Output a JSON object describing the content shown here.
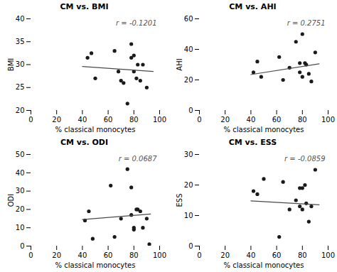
{
  "chart_data": [
    {
      "type": "scatter",
      "title": "CM vs. BMI",
      "xlabel": "% classical monocytes",
      "ylabel": "BMI",
      "annotation": "r = -0.1201",
      "xlim": [
        0,
        100
      ],
      "ylim": [
        20,
        40
      ],
      "xticks": [
        0,
        20,
        40,
        60,
        80,
        100
      ],
      "yticks": [
        20,
        25,
        30,
        35,
        40
      ],
      "series": [
        {
          "type": "scatter",
          "color": "#1a1a1a",
          "x": [
            44,
            47,
            50,
            65,
            68,
            70,
            72,
            75,
            78,
            78,
            80,
            80,
            82,
            83,
            85,
            87,
            90
          ],
          "values": [
            31.5,
            32.5,
            27.0,
            33.0,
            28.5,
            26.5,
            26.0,
            21.5,
            34.5,
            31.5,
            32.0,
            28.5,
            27.0,
            30.0,
            26.5,
            30.0,
            25.0
          ]
        },
        {
          "type": "line",
          "color": "#4a4a4a",
          "x": [
            40,
            95
          ],
          "values": [
            29.6,
            28.5
          ]
        }
      ]
    },
    {
      "type": "scatter",
      "title": "CM vs. AHI",
      "xlabel": "% classical monocytes",
      "ylabel": "AHI",
      "annotation": "r = 0.2751",
      "xlim": [
        0,
        100
      ],
      "ylim": [
        0,
        60
      ],
      "xticks": [
        0,
        20,
        40,
        60,
        80,
        100
      ],
      "yticks": [
        0,
        20,
        40,
        60
      ],
      "series": [
        {
          "type": "scatter",
          "color": "#1a1a1a",
          "x": [
            42,
            45,
            48,
            62,
            65,
            70,
            75,
            78,
            78,
            80,
            80,
            82,
            83,
            85,
            87,
            90
          ],
          "values": [
            25,
            32,
            22,
            35,
            20,
            28,
            45,
            31,
            25,
            50,
            22,
            31,
            30,
            24,
            19,
            38
          ]
        },
        {
          "type": "line",
          "color": "#4a4a4a",
          "x": [
            40,
            93
          ],
          "values": [
            23.5,
            30.5
          ]
        }
      ]
    },
    {
      "type": "scatter",
      "title": "CM vs. ODI",
      "xlabel": "% classical monocytes",
      "ylabel": "ODI",
      "annotation": "r = 0.0687",
      "xlim": [
        0,
        100
      ],
      "ylim": [
        0,
        50
      ],
      "xticks": [
        0,
        20,
        40,
        60,
        80,
        100
      ],
      "yticks": [
        0,
        10,
        20,
        30,
        40,
        50
      ],
      "series": [
        {
          "type": "scatter",
          "color": "#1a1a1a",
          "x": [
            42,
            45,
            48,
            62,
            65,
            70,
            75,
            78,
            78,
            80,
            80,
            82,
            83,
            85,
            87,
            90,
            92
          ],
          "values": [
            14,
            19,
            4,
            33,
            5,
            15,
            42,
            17,
            32,
            10,
            9,
            20,
            20,
            19,
            10,
            15,
            1
          ]
        },
        {
          "type": "line",
          "color": "#4a4a4a",
          "x": [
            40,
            93
          ],
          "values": [
            14.5,
            17.5
          ]
        }
      ]
    },
    {
      "type": "scatter",
      "title": "CM vs. ESS",
      "xlabel": "% classical monocytes",
      "ylabel": "ESS",
      "annotation": "r = -0.0859",
      "xlim": [
        0,
        100
      ],
      "ylim": [
        0,
        30
      ],
      "xticks": [
        0,
        20,
        40,
        60,
        80,
        100
      ],
      "yticks": [
        0,
        10,
        20,
        30
      ],
      "series": [
        {
          "type": "scatter",
          "color": "#1a1a1a",
          "x": [
            42,
            45,
            50,
            62,
            65,
            70,
            75,
            78,
            78,
            80,
            80,
            82,
            83,
            85,
            87,
            90
          ],
          "values": [
            18,
            17,
            22,
            3,
            21,
            12,
            15,
            19,
            13,
            12,
            19,
            20,
            14,
            8,
            13,
            25
          ]
        },
        {
          "type": "line",
          "color": "#4a4a4a",
          "x": [
            40,
            93
          ],
          "values": [
            14.8,
            13.5
          ]
        }
      ]
    }
  ]
}
